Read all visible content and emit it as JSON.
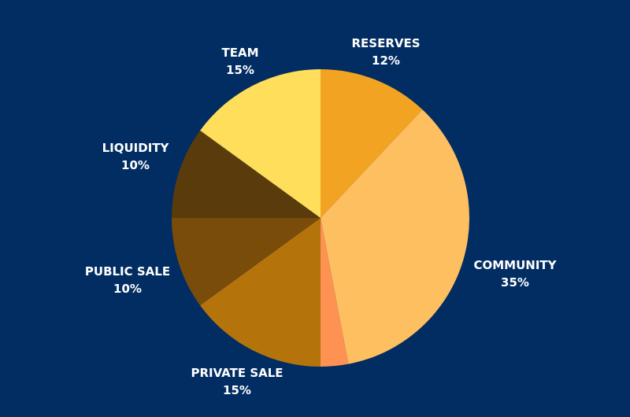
{
  "chart_data": {
    "type": "pie",
    "background": "#022d62",
    "label_color": "#ffffff",
    "slices": [
      {
        "label": "RESERVES",
        "value_text": "12%",
        "value": 12,
        "color": "#f3a322"
      },
      {
        "label": "COMMUNITY",
        "value_text": "35%",
        "value": 35,
        "color": "#fdbf5f"
      },
      {
        "label": "",
        "value_text": "",
        "value": 3,
        "color": "#fe9252"
      },
      {
        "label": "PRIVATE SALE",
        "value_text": "15%",
        "value": 15,
        "color": "#b5730b"
      },
      {
        "label": "PUBLIC SALE",
        "value_text": "10%",
        "value": 10,
        "color": "#7a4c0a"
      },
      {
        "label": "LIQUIDITY",
        "value_text": "10%",
        "value": 10,
        "color": "#5a3b0b"
      },
      {
        "label": "TEAM",
        "value_text": "15%",
        "value": 15,
        "color": "#fede5a"
      }
    ]
  }
}
